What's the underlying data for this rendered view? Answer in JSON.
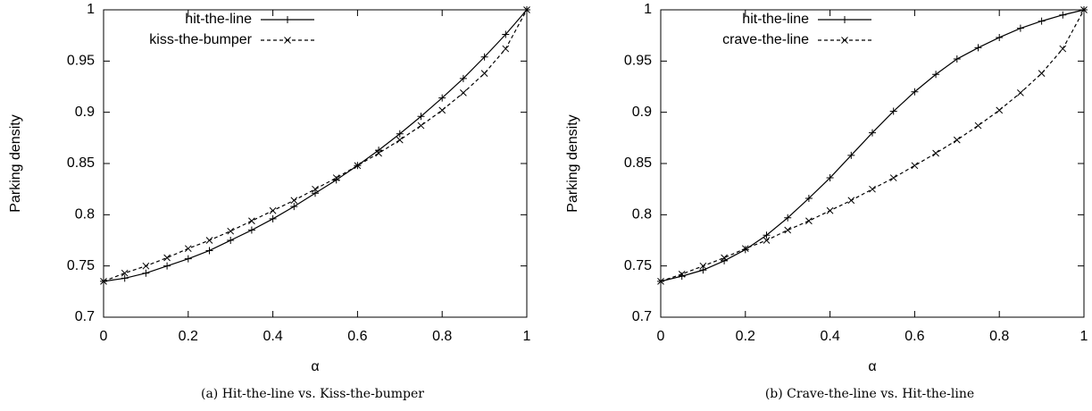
{
  "chart_data": [
    {
      "type": "line",
      "caption": "(a) Hit-the-line vs. Kiss-the-bumper",
      "xlabel": "α",
      "ylabel": "Parking density",
      "x": [
        0,
        0.05,
        0.1,
        0.15,
        0.2,
        0.25,
        0.3,
        0.35,
        0.4,
        0.45,
        0.5,
        0.55,
        0.6,
        0.65,
        0.7,
        0.75,
        0.8,
        0.85,
        0.9,
        0.95,
        1
      ],
      "xlim": [
        0,
        1
      ],
      "xticks": [
        0,
        0.2,
        0.4,
        0.6,
        0.8,
        1
      ],
      "ylim": [
        0.7,
        1
      ],
      "yticks": [
        0.7,
        0.75,
        0.8,
        0.85,
        0.9,
        0.95,
        1
      ],
      "legend": "upper left",
      "series": [
        {
          "name": "hit-the-line",
          "color": "#000000",
          "line_style": "solid",
          "marker": "plus",
          "values": [
            0.735,
            0.738,
            0.743,
            0.75,
            0.757,
            0.765,
            0.775,
            0.785,
            0.796,
            0.808,
            0.821,
            0.834,
            0.848,
            0.863,
            0.879,
            0.896,
            0.914,
            0.933,
            0.954,
            0.976,
            1.0
          ]
        },
        {
          "name": "kiss-the-bumper",
          "color": "#000000",
          "line_style": "dashed",
          "marker": "cross",
          "values": [
            0.735,
            0.743,
            0.75,
            0.758,
            0.767,
            0.775,
            0.784,
            0.794,
            0.804,
            0.814,
            0.825,
            0.836,
            0.848,
            0.86,
            0.873,
            0.887,
            0.902,
            0.919,
            0.938,
            0.962,
            1.0
          ]
        }
      ]
    },
    {
      "type": "line",
      "caption": "(b) Crave-the-line vs. Hit-the-line",
      "xlabel": "α",
      "ylabel": "Parking density",
      "x": [
        0,
        0.05,
        0.1,
        0.15,
        0.2,
        0.25,
        0.3,
        0.35,
        0.4,
        0.45,
        0.5,
        0.55,
        0.6,
        0.65,
        0.7,
        0.75,
        0.8,
        0.85,
        0.9,
        0.95,
        1
      ],
      "xlim": [
        0,
        1
      ],
      "xticks": [
        0,
        0.2,
        0.4,
        0.6,
        0.8,
        1
      ],
      "ylim": [
        0.7,
        1
      ],
      "yticks": [
        0.7,
        0.75,
        0.8,
        0.85,
        0.9,
        0.95,
        1
      ],
      "legend": "upper left",
      "series": [
        {
          "name": "hit-the-line",
          "color": "#000000",
          "line_style": "solid",
          "marker": "plus",
          "values": [
            0.735,
            0.74,
            0.746,
            0.755,
            0.766,
            0.78,
            0.797,
            0.816,
            0.836,
            0.858,
            0.88,
            0.901,
            0.92,
            0.937,
            0.952,
            0.963,
            0.973,
            0.982,
            0.989,
            0.995,
            1.0
          ]
        },
        {
          "name": "crave-the-line",
          "color": "#000000",
          "line_style": "dashed",
          "marker": "cross",
          "values": [
            0.735,
            0.742,
            0.75,
            0.758,
            0.767,
            0.775,
            0.785,
            0.794,
            0.804,
            0.814,
            0.825,
            0.836,
            0.848,
            0.86,
            0.873,
            0.887,
            0.902,
            0.919,
            0.938,
            0.962,
            1.0
          ]
        }
      ]
    }
  ]
}
